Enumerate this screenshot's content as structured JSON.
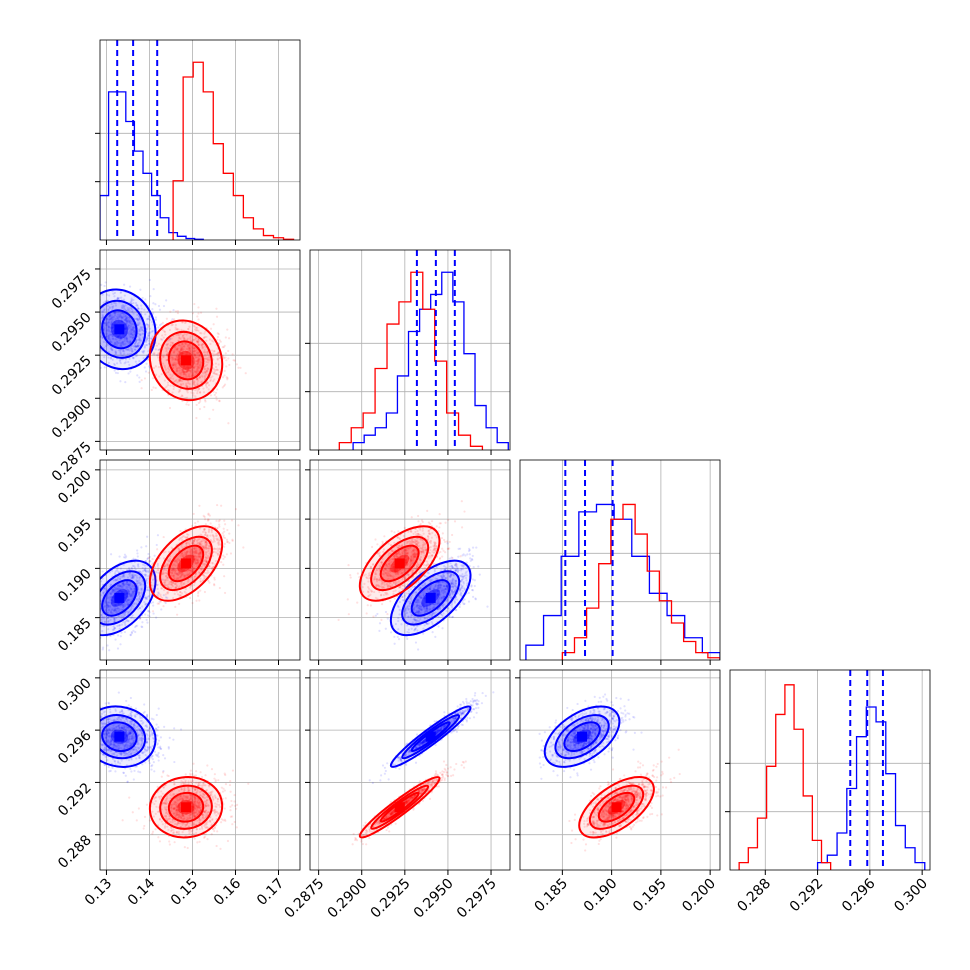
{
  "chart_data": {
    "type": "corner",
    "description_free": true,
    "grid": true,
    "params": [
      {
        "ticks": [
          0.13,
          0.14,
          0.15,
          0.16,
          0.17
        ],
        "tick_labels": [
          "0.13",
          "0.14",
          "0.15",
          "0.16",
          "0.17"
        ],
        "range": [
          0.1285,
          0.175
        ]
      },
      {
        "ticks": [
          0.2875,
          0.29,
          0.2925,
          0.295,
          0.2975
        ],
        "tick_labels": [
          "0.2875",
          "0.2900",
          "0.2925",
          "0.2950",
          "0.2975"
        ],
        "range": [
          0.287,
          0.2986
        ]
      },
      {
        "ticks": [
          0.185,
          0.19,
          0.195,
          0.2
        ],
        "tick_labels": [
          "0.185",
          "0.190",
          "0.195",
          "0.200"
        ],
        "range": [
          0.1807,
          0.201
        ]
      },
      {
        "ticks": [
          0.288,
          0.292,
          0.296,
          0.3
        ],
        "tick_labels": [
          "0.288",
          "0.292",
          "0.296",
          "0.300"
        ],
        "range": [
          0.2853,
          0.3006
        ]
      }
    ],
    "series": [
      {
        "color": "#0000ff",
        "means": [
          0.133,
          0.294,
          0.187,
          0.2955
        ],
        "stds": [
          0.004,
          0.0011,
          0.0018,
          0.0011
        ],
        "correlations": {
          "0-1": -0.1,
          "0-2": 0.45,
          "0-3": -0.1,
          "1-2": 0.6,
          "1-3": 0.95,
          "2-3": 0.5
        },
        "quantile_lines": [
          [
            0.1325,
            0.1362,
            0.1418
          ],
          [
            0.2932,
            0.2943,
            0.2954
          ],
          [
            0.1853,
            0.1873,
            0.1901
          ],
          [
            0.2945,
            0.2958,
            0.297
          ]
        ],
        "hist": [
          [
            0.06,
            0.2,
            0.2,
            0.16,
            0.12,
            0.09,
            0.06,
            0.03,
            0.01,
            0.005,
            0.002,
            0.001
          ],
          [
            0.01,
            0.02,
            0.03,
            0.05,
            0.1,
            0.16,
            0.19,
            0.21,
            0.24,
            0.2,
            0.13,
            0.06,
            0.03,
            0.01
          ],
          [
            0.02,
            0.06,
            0.14,
            0.2,
            0.21,
            0.19,
            0.14,
            0.09,
            0.06,
            0.03,
            0.01
          ],
          [
            0.01,
            0.02,
            0.05,
            0.11,
            0.18,
            0.22,
            0.2,
            0.13,
            0.06,
            0.03,
            0.01
          ]
        ],
        "hist_ranges": [
          [
            0.1285,
            0.1525
          ],
          [
            0.2895,
            0.2985
          ],
          [
            0.1813,
            0.201
          ],
          [
            0.292,
            0.3002
          ]
        ]
      },
      {
        "color": "#ff0000",
        "means": [
          0.1485,
          0.2922,
          0.1905,
          0.2901
        ],
        "stds": [
          0.004,
          0.0011,
          0.0018,
          0.0011
        ],
        "correlations": {
          "0-1": -0.1,
          "0-2": 0.5,
          "0-3": 0.05,
          "1-2": 0.6,
          "1-3": 0.95,
          "2-3": 0.6
        },
        "hist": [
          [
            0.08,
            0.22,
            0.24,
            0.2,
            0.13,
            0.09,
            0.06,
            0.03,
            0.015,
            0.006,
            0.003,
            0.001
          ],
          [
            0.01,
            0.03,
            0.05,
            0.11,
            0.17,
            0.2,
            0.24,
            0.19,
            0.12,
            0.05,
            0.02,
            0.005
          ],
          [
            0.01,
            0.03,
            0.07,
            0.13,
            0.19,
            0.21,
            0.17,
            0.12,
            0.08,
            0.05,
            0.025,
            0.01,
            0.003
          ],
          [
            0.01,
            0.03,
            0.07,
            0.14,
            0.21,
            0.25,
            0.19,
            0.1,
            0.04,
            0.01
          ]
        ],
        "hist_ranges": [
          [
            0.1455,
            0.1735
          ],
          [
            0.2887,
            0.297
          ],
          [
            0.185,
            0.201
          ],
          [
            0.286,
            0.293
          ]
        ]
      }
    ],
    "hist_ylim_max": 0.27
  }
}
